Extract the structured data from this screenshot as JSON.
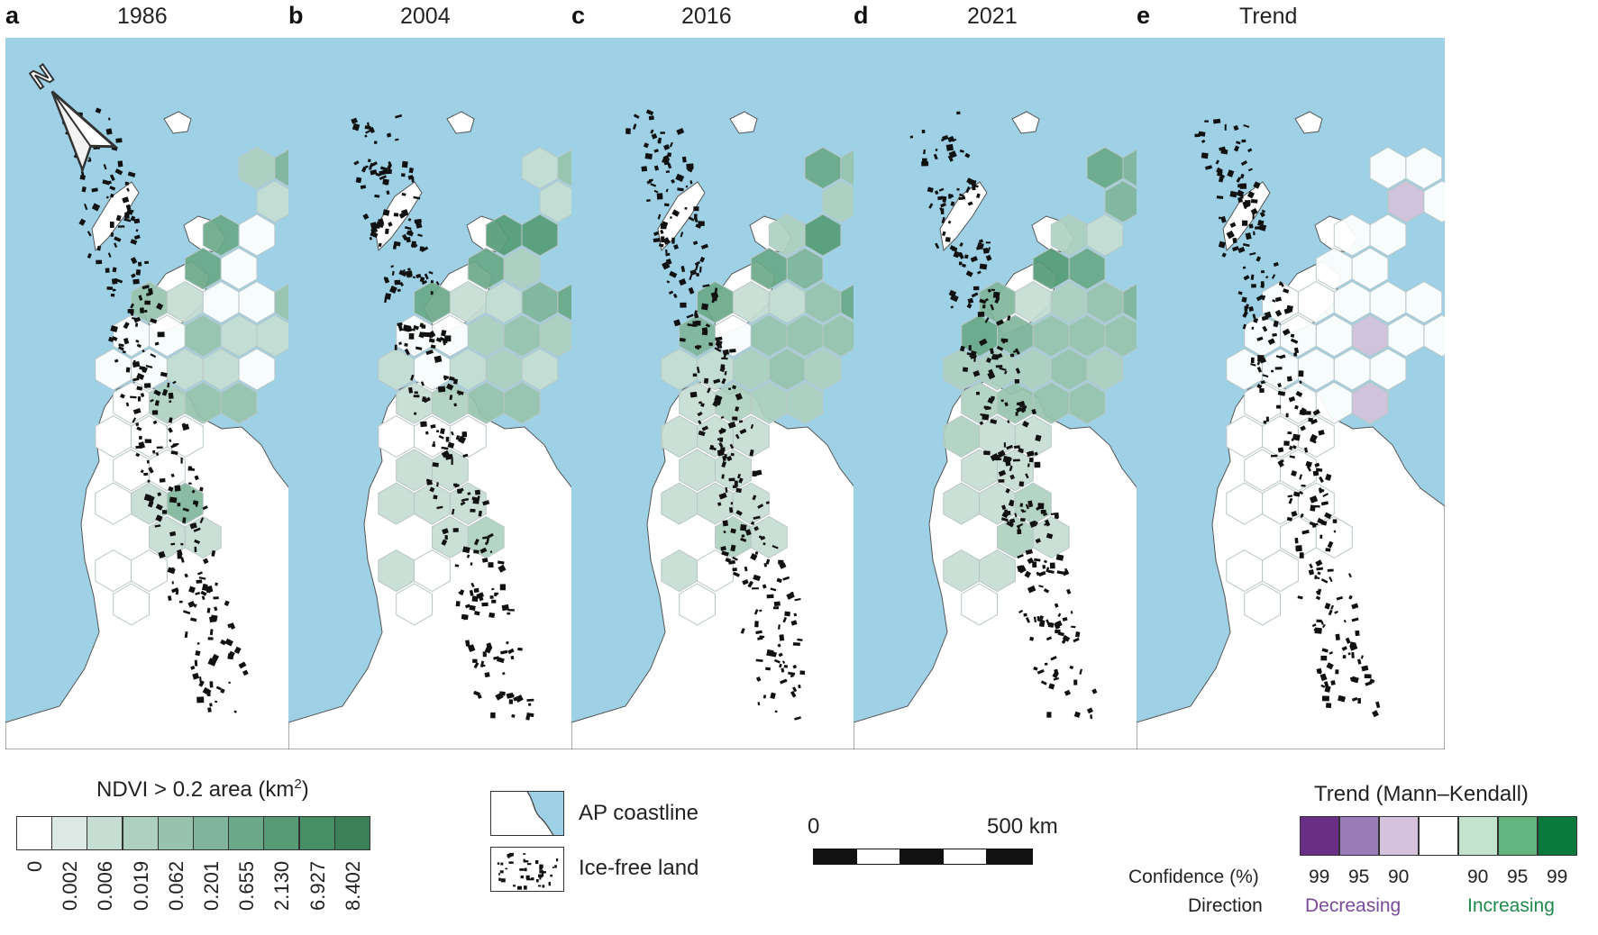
{
  "panels": [
    {
      "letter": "a",
      "title": "1986"
    },
    {
      "letter": "b",
      "title": "2004"
    },
    {
      "letter": "c",
      "title": "2016"
    },
    {
      "letter": "d",
      "title": "2021"
    },
    {
      "letter": "e",
      "title": "Trend"
    }
  ],
  "north_arrow": {
    "label": "N",
    "icon": "north-arrow-icon"
  },
  "ndvi_legend": {
    "title_main": "NDVI > 0.2 area (km",
    "title_sup": "2",
    "title_end": ")",
    "classes": [
      {
        "label": "0",
        "color": "#ffffff"
      },
      {
        "label": "0.002",
        "color": "#dde9e4"
      },
      {
        "label": "0.006",
        "color": "#c5ddd2"
      },
      {
        "label": "0.019",
        "color": "#aed0c0"
      },
      {
        "label": "0.062",
        "color": "#97c3ae"
      },
      {
        "label": "0.201",
        "color": "#80b59b"
      },
      {
        "label": "0.655",
        "color": "#6aa888"
      },
      {
        "label": "2.130",
        "color": "#569b76"
      },
      {
        "label": "6.927",
        "color": "#458e66"
      },
      {
        "label": "8.402",
        "color": "#3a8159"
      }
    ]
  },
  "map_key": {
    "coastline_label": "AP coastline",
    "icefree_label": "Ice-free land",
    "ocean_color": "#9ed1e6"
  },
  "scale_bar": {
    "start_label": "0",
    "end_label": "500 km"
  },
  "trend_legend": {
    "title": "Trend (Mann–Kendall)",
    "confidence_label": "Confidence (%)",
    "direction_label": "Direction",
    "decreasing_label": "Decreasing",
    "increasing_label": "Increasing",
    "decreasing_color": "#7a4a9a",
    "increasing_color": "#1e8a4a",
    "classes": [
      {
        "confidence": "99",
        "color": "#6a2e86"
      },
      {
        "confidence": "95",
        "color": "#9a7cb6"
      },
      {
        "confidence": "90",
        "color": "#d5c2dc"
      },
      {
        "confidence": "",
        "color": "#ffffff"
      },
      {
        "confidence": "90",
        "color": "#c4e3cd"
      },
      {
        "confidence": "95",
        "color": "#63b57f"
      },
      {
        "confidence": "99",
        "color": "#0a7a3c"
      }
    ]
  },
  "hex_values": {
    "ndvi_1986": [
      3,
      5,
      2,
      0,
      6,
      0,
      6,
      0,
      4,
      2,
      0,
      0,
      4,
      0,
      0,
      4,
      2,
      2,
      0,
      0,
      0,
      2,
      2,
      0,
      0,
      3,
      4,
      4,
      0,
      0,
      0,
      0,
      0,
      0,
      2,
      5,
      2,
      2,
      0,
      0,
      0
    ],
    "ndvi_2004": [
      2,
      4,
      2,
      2,
      7,
      7,
      6,
      3,
      6,
      2,
      2,
      5,
      6,
      0,
      0,
      3,
      4,
      3,
      2,
      2,
      0,
      2,
      3,
      2,
      2,
      3,
      4,
      4,
      0,
      0,
      0,
      2,
      2,
      2,
      2,
      2,
      2,
      3,
      2,
      0,
      0
    ],
    "ndvi_2016": [
      6,
      4,
      3,
      3,
      3,
      7,
      6,
      5,
      6,
      2,
      2,
      4,
      6,
      5,
      0,
      4,
      4,
      4,
      2,
      2,
      2,
      3,
      4,
      3,
      2,
      3,
      3,
      3,
      2,
      2,
      2,
      2,
      2,
      2,
      2,
      2,
      3,
      2,
      2,
      0,
      0
    ],
    "ndvi_2021": [
      6,
      5,
      5,
      4,
      3,
      2,
      7,
      6,
      5,
      2,
      3,
      4,
      5,
      6,
      5,
      4,
      4,
      4,
      3,
      3,
      3,
      3,
      4,
      3,
      3,
      4,
      4,
      4,
      3,
      2,
      2,
      2,
      2,
      2,
      2,
      3,
      3,
      2,
      2,
      2,
      0
    ],
    "trend": [
      3,
      3,
      2,
      3,
      3,
      3,
      3,
      3,
      3,
      3,
      3,
      3,
      3,
      3,
      3,
      3,
      2,
      3,
      3,
      3,
      3,
      3,
      3,
      3,
      3,
      3,
      3,
      2,
      3,
      3,
      3,
      3,
      3,
      3,
      3,
      3,
      3,
      3,
      3,
      3,
      3
    ]
  }
}
